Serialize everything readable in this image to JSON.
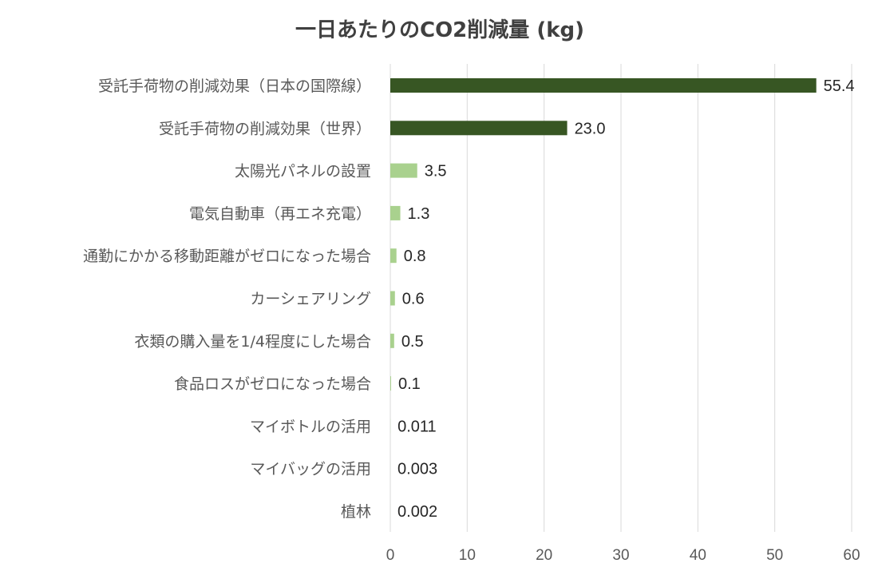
{
  "chart_data": {
    "type": "bar",
    "orientation": "horizontal",
    "title": "一日あたりのCO2削減量 (kg)",
    "xlabel": "",
    "ylabel": "",
    "xlim": [
      0,
      60
    ],
    "x_ticks": [
      "0",
      "10",
      "20",
      "30",
      "40",
      "50",
      "60"
    ],
    "grid": "vertical",
    "categories": [
      "受託手荷物の削減効果（日本の国際線）",
      "受託手荷物の削減効果（世界）",
      "太陽光パネルの設置",
      "電気自動車（再エネ充電）",
      "通勤にかかる移動距離がゼロになった場合",
      "カーシェアリング",
      "衣類の購入量を1/4程度にした場合",
      "食品ロスがゼロになった場合",
      "マイボトルの活用",
      "マイバッグの活用",
      "植林"
    ],
    "values": [
      55.4,
      23.0,
      3.5,
      1.3,
      0.8,
      0.6,
      0.5,
      0.1,
      0.011,
      0.003,
      0.002
    ],
    "value_labels": [
      "55.4",
      "23.0",
      "3.5",
      "1.3",
      "0.8",
      "0.6",
      "0.5",
      "0.1",
      "0.011",
      "0.003",
      "0.002"
    ],
    "colors": [
      "#375623",
      "#375623",
      "#a9d18e",
      "#a9d18e",
      "#a9d18e",
      "#a9d18e",
      "#a9d18e",
      "#a9d18e",
      "#a9d18e",
      "#a9d18e",
      "#a9d18e"
    ]
  }
}
